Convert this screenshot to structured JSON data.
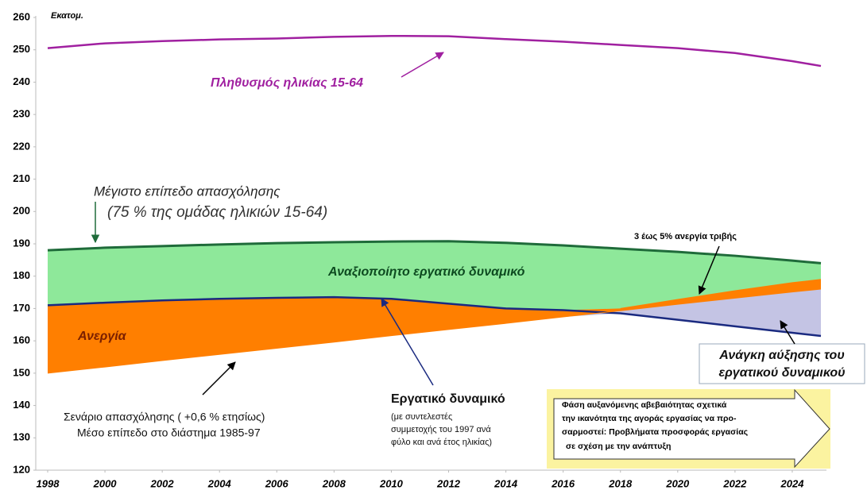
{
  "chart_data": {
    "type": "area",
    "y_label": "Εκατομ.",
    "x": [
      1998,
      2000,
      2002,
      2004,
      2006,
      2008,
      2010,
      2012,
      2014,
      2016,
      2018,
      2020,
      2022,
      2024,
      2025
    ],
    "xlim": [
      1998,
      2025
    ],
    "xticks": [
      1998,
      2000,
      2002,
      2004,
      2006,
      2008,
      2010,
      2012,
      2014,
      2016,
      2018,
      2020,
      2022,
      2024
    ],
    "ylim": [
      120,
      260
    ],
    "yticks": [
      120,
      130,
      140,
      150,
      160,
      170,
      180,
      190,
      200,
      210,
      220,
      230,
      240,
      250,
      260
    ],
    "grid": false,
    "series": [
      {
        "name": "Πληθυσμός ηλικίας 15-64",
        "color": "#a020a0",
        "values": [
          250.5,
          252,
          252.7,
          253.2,
          253.5,
          254,
          254.3,
          254.2,
          253.3,
          252.5,
          251.5,
          250.5,
          249,
          246.5,
          245
        ]
      },
      {
        "name": "Μέγιστο επίπεδο απασχόλησης",
        "color": "#1f6b3a",
        "values": [
          188,
          188.8,
          189.3,
          189.8,
          190.2,
          190.5,
          190.7,
          190.8,
          190.3,
          189.5,
          188.5,
          187.5,
          186.3,
          184.8,
          184
        ]
      },
      {
        "name": "Εργατικό δυναμικό",
        "color": "#1a2a80",
        "values": [
          171,
          171.8,
          172.5,
          173,
          173.3,
          173.5,
          173,
          171.5,
          170,
          169.5,
          168.5,
          166.5,
          164.5,
          162.5,
          161.5
        ]
      },
      {
        "name": "Σενάριο απασχόλησης ( +0,6 % ετησίως)",
        "color": "#ff7f00",
        "values": [
          150,
          151.9,
          153.9,
          155.8,
          157.7,
          159.6,
          161.6,
          163.5,
          165.4,
          167.4,
          169.3,
          171.3,
          173.2,
          175.1,
          176
        ]
      },
      {
        "name": "3 έως 5% ανεργία τριβής",
        "color": "#ff7f00",
        "values": [
          null,
          null,
          null,
          null,
          null,
          null,
          null,
          null,
          null,
          null,
          170,
          172.8,
          175.5,
          178,
          179
        ]
      }
    ],
    "area_colors": {
      "unused": "#8ee89a",
      "unemployment": "#ff7f00",
      "need": "#c4c4e4"
    },
    "annotations": {
      "max_employment_sub": "(75 % της ομάδας ηλικιών 15-64)",
      "unused": "Αναξιοποίητο εργατικό δυναμικό",
      "unemployment": "Ανεργία",
      "need": [
        "Ανάγκη αύξησης του",
        "εργατικού δυναμικού"
      ],
      "labour_sub": [
        "(με συντελεστές",
        "συμμετοχής του 1997 ανά",
        "φύλο και ανά έτος ηλικίας)"
      ],
      "employment_sub": "Μέσο επίπεδο στο διάστημα 1985-97",
      "box": [
        "Φάση αυξανόμενης αβεβαιότητας σχετικά",
        "την ικανότητα της αγοράς εργασίας να προ-",
        "σαρμοστεί: Προβλήματα προσφοράς εργασίας",
        "σε σχέση με την ανάπτυξη"
      ]
    }
  }
}
